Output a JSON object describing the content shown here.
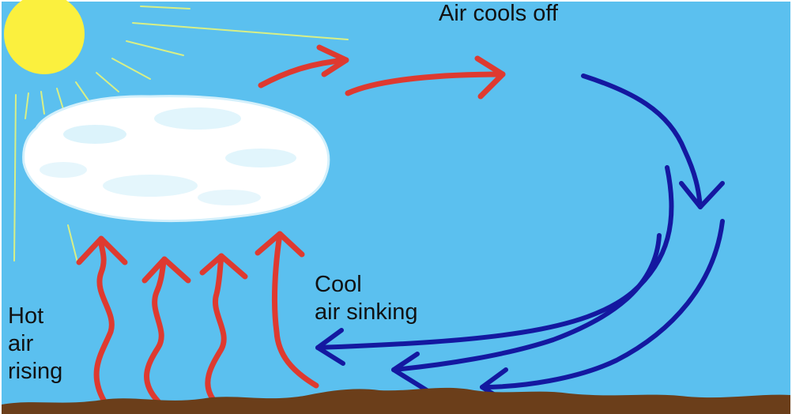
{
  "labels": {
    "air_cools_off": "Air cools off",
    "cool_air_line1": "Cool",
    "cool_air_line2": "air sinking",
    "hot_air_line1": "Hot",
    "hot_air_line2": "air",
    "hot_air_line3": "rising"
  },
  "colors": {
    "sky": "#5bc0ef",
    "sun": "#fbf03e",
    "sun_rays": "#d8ef86",
    "cloud": "#ffffff",
    "cloud_shade": "#cdeefa",
    "warm_air_arrows": "#de3a30",
    "cool_air_arrows": "#1418a0",
    "ground": "#6b3e1a",
    "text": "#111111"
  },
  "icons": {
    "sun": "sun-icon",
    "cloud": "cloud-icon"
  }
}
